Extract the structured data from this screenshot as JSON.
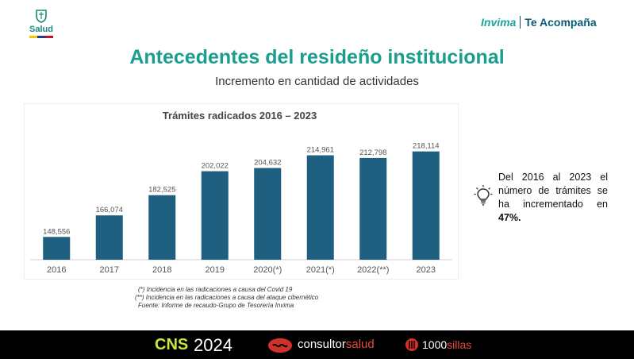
{
  "header": {
    "salud_label": "Salud",
    "invima_brand": "Invima",
    "invima_tagline": "Te Acompaña"
  },
  "slide": {
    "title": "Antecedentes del resideño institucional",
    "subtitle": "Incremento en cantidad de actividades"
  },
  "chart_data": {
    "type": "bar",
    "title": "Trámites radicados 2016 – 2023",
    "categories": [
      "2016",
      "2017",
      "2018",
      "2019",
      "2020(*)",
      "2021(*)",
      "2022(**)",
      "2023"
    ],
    "values": [
      148556,
      166074,
      182525,
      202022,
      204632,
      214961,
      212798,
      218114
    ],
    "value_labels": [
      "148,556",
      "166,074",
      "182,525",
      "202,022",
      "204,632",
      "214,961",
      "212,798",
      "218,114"
    ],
    "bar_color": "#1f5f7f",
    "ylim": [
      130000,
      225000
    ],
    "grid": false,
    "legend": "none"
  },
  "notes": {
    "line1": "(*) Incidencia en las radicaciones a causa del Covid 19",
    "line2": "(**) Incidencia en las radicaciones a causa del ataque cibernético",
    "line3": "Fuente: Informe de recaudo-Grupo de Tesorería Invima"
  },
  "callout": {
    "text": "Del 2016 al 2023 el número de trámites se ha incrementado en",
    "highlight": "47%."
  },
  "footer": {
    "cns": "CNS",
    "year": "2024",
    "consultor": "consultor",
    "salud": "salud",
    "mil": "1000",
    "sillas": "sillas"
  },
  "colors": {
    "teal": "#1a9e8f",
    "navy_bar": "#1f5f7f",
    "cns_yellow": "#cfe33a",
    "brand_red": "#d3302a"
  }
}
